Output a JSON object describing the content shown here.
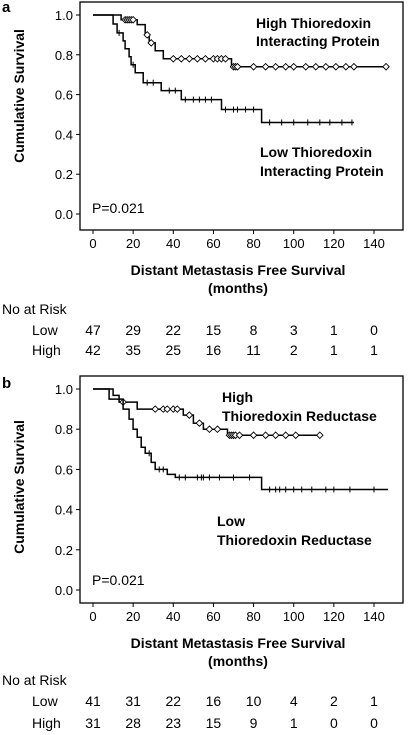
{
  "chart_data": [
    {
      "type": "line",
      "panel_label": "a",
      "ylabel": "Cumulative Survival",
      "xlabel_line1": "Distant Metastasis Free Survival",
      "xlabel_line2": "(months)",
      "xlim": [
        0,
        150
      ],
      "ylim": [
        0,
        1.0
      ],
      "x_ticks": [
        0,
        20,
        40,
        60,
        80,
        100,
        120,
        140
      ],
      "y_ticks": [
        0.0,
        0.2,
        0.4,
        0.6,
        0.8,
        1.0
      ],
      "y_tick_labels": [
        "0.0",
        "0.2",
        "0.4",
        "0.6",
        "0.8",
        "1.0"
      ],
      "pvalue": "P=0.021",
      "series": [
        {
          "name_line1": "High Thioredoxin",
          "name_line2": "Interacting Protein",
          "censor_marker": "diamond",
          "steps": [
            [
              0,
              1.0
            ],
            [
              14,
              1.0
            ],
            [
              14,
              0.976
            ],
            [
              22,
              0.976
            ],
            [
              22,
              0.952
            ],
            [
              26,
              0.952
            ],
            [
              26,
              0.9
            ],
            [
              28,
              0.9
            ],
            [
              28,
              0.86
            ],
            [
              31,
              0.86
            ],
            [
              31,
              0.82
            ],
            [
              35,
              0.82
            ],
            [
              35,
              0.78
            ],
            [
              69,
              0.78
            ],
            [
              69,
              0.74
            ],
            [
              147,
              0.74
            ]
          ],
          "censored": [
            [
              16,
              0.976
            ],
            [
              17,
              0.976
            ],
            [
              18,
              0.976
            ],
            [
              19,
              0.976
            ],
            [
              20,
              0.976
            ],
            [
              27,
              0.9
            ],
            [
              29,
              0.86
            ],
            [
              40,
              0.78
            ],
            [
              44,
              0.78
            ],
            [
              48,
              0.78
            ],
            [
              52,
              0.78
            ],
            [
              56,
              0.78
            ],
            [
              60,
              0.78
            ],
            [
              62,
              0.78
            ],
            [
              64,
              0.78
            ],
            [
              66,
              0.78
            ],
            [
              70,
              0.74
            ],
            [
              71,
              0.74
            ],
            [
              72,
              0.74
            ],
            [
              80,
              0.74
            ],
            [
              86,
              0.74
            ],
            [
              91,
              0.74
            ],
            [
              96,
              0.74
            ],
            [
              100,
              0.74
            ],
            [
              106,
              0.74
            ],
            [
              111,
              0.74
            ],
            [
              116,
              0.74
            ],
            [
              121,
              0.74
            ],
            [
              126,
              0.74
            ],
            [
              130,
              0.74
            ],
            [
              146,
              0.74
            ]
          ]
        },
        {
          "name_line1": "Low Thioredoxin",
          "name_line2": "Interacting Protein",
          "censor_marker": "plus",
          "steps": [
            [
              0,
              1.0
            ],
            [
              10,
              1.0
            ],
            [
              10,
              0.955
            ],
            [
              12,
              0.955
            ],
            [
              12,
              0.91
            ],
            [
              15,
              0.91
            ],
            [
              15,
              0.87
            ],
            [
              16,
              0.87
            ],
            [
              16,
              0.83
            ],
            [
              18,
              0.83
            ],
            [
              18,
              0.79
            ],
            [
              19,
              0.79
            ],
            [
              19,
              0.75
            ],
            [
              21,
              0.75
            ],
            [
              21,
              0.71
            ],
            [
              25,
              0.71
            ],
            [
              25,
              0.66
            ],
            [
              34,
              0.66
            ],
            [
              34,
              0.62
            ],
            [
              44,
              0.62
            ],
            [
              44,
              0.575
            ],
            [
              64,
              0.575
            ],
            [
              64,
              0.525
            ],
            [
              84,
              0.525
            ],
            [
              84,
              0.46
            ],
            [
              130,
              0.46
            ]
          ],
          "censored": [
            [
              13,
              0.91
            ],
            [
              20,
              0.75
            ],
            [
              27,
              0.66
            ],
            [
              30,
              0.66
            ],
            [
              38,
              0.62
            ],
            [
              41,
              0.62
            ],
            [
              46,
              0.575
            ],
            [
              50,
              0.575
            ],
            [
              53,
              0.575
            ],
            [
              56,
              0.575
            ],
            [
              59,
              0.575
            ],
            [
              66,
              0.525
            ],
            [
              70,
              0.525
            ],
            [
              72,
              0.525
            ],
            [
              76,
              0.525
            ],
            [
              80,
              0.525
            ],
            [
              88,
              0.46
            ],
            [
              94,
              0.46
            ],
            [
              100,
              0.46
            ],
            [
              107,
              0.46
            ],
            [
              113,
              0.46
            ],
            [
              118,
              0.46
            ],
            [
              124,
              0.46
            ],
            [
              129,
              0.46
            ]
          ]
        }
      ],
      "risk_table": {
        "header": "No at Risk",
        "times": [
          0,
          20,
          40,
          60,
          80,
          100,
          120,
          140
        ],
        "rows": [
          {
            "label": "Low",
            "values": [
              "47",
              "29",
              "22",
              "15",
              "8",
              "3",
              "1",
              "0"
            ]
          },
          {
            "label": "High",
            "values": [
              "42",
              "35",
              "25",
              "16",
              "11",
              "2",
              "1",
              "1"
            ]
          }
        ]
      }
    },
    {
      "type": "line",
      "panel_label": "b",
      "ylabel": "Cumulative Survival",
      "xlabel_line1": "Distant Metastasis Free Survival",
      "xlabel_line2": "(months)",
      "xlim": [
        0,
        150
      ],
      "ylim": [
        0,
        1.0
      ],
      "x_ticks": [
        0,
        20,
        40,
        60,
        80,
        100,
        120,
        140
      ],
      "y_ticks": [
        0.0,
        0.2,
        0.4,
        0.6,
        0.8,
        1.0
      ],
      "y_tick_labels": [
        "0.0",
        "0.2",
        "0.4",
        "0.6",
        "0.8",
        "1.0"
      ],
      "pvalue": "P=0.021",
      "series": [
        {
          "name_line1": "High",
          "name_line2": "Thioredoxin Reductase",
          "censor_marker": "diamond",
          "steps": [
            [
              0,
              1.0
            ],
            [
              10,
              1.0
            ],
            [
              10,
              0.968
            ],
            [
              13,
              0.968
            ],
            [
              13,
              0.935
            ],
            [
              22,
              0.935
            ],
            [
              22,
              0.9
            ],
            [
              45,
              0.9
            ],
            [
              45,
              0.87
            ],
            [
              50,
              0.87
            ],
            [
              50,
              0.83
            ],
            [
              55,
              0.83
            ],
            [
              55,
              0.8
            ],
            [
              67,
              0.8
            ],
            [
              67,
              0.77
            ],
            [
              114,
              0.77
            ]
          ],
          "censored": [
            [
              15,
              0.935
            ],
            [
              31,
              0.9
            ],
            [
              35,
              0.9
            ],
            [
              37,
              0.9
            ],
            [
              40,
              0.9
            ],
            [
              42,
              0.9
            ],
            [
              48,
              0.87
            ],
            [
              53,
              0.83
            ],
            [
              58,
              0.8
            ],
            [
              62,
              0.8
            ],
            [
              68,
              0.77
            ],
            [
              69,
              0.77
            ],
            [
              70,
              0.77
            ],
            [
              71,
              0.77
            ],
            [
              73,
              0.77
            ],
            [
              80,
              0.77
            ],
            [
              86,
              0.77
            ],
            [
              91,
              0.77
            ],
            [
              96,
              0.77
            ],
            [
              101,
              0.77
            ],
            [
              113,
              0.77
            ]
          ]
        },
        {
          "name_line1": "Low",
          "name_line2": "Thioredoxin Reductase",
          "censor_marker": "plus",
          "steps": [
            [
              0,
              1.0
            ],
            [
              8,
              1.0
            ],
            [
              8,
              0.95
            ],
            [
              15,
              0.95
            ],
            [
              15,
              0.9
            ],
            [
              18,
              0.9
            ],
            [
              18,
              0.85
            ],
            [
              20,
              0.85
            ],
            [
              20,
              0.8
            ],
            [
              22,
              0.8
            ],
            [
              22,
              0.76
            ],
            [
              24,
              0.76
            ],
            [
              24,
              0.71
            ],
            [
              26,
              0.71
            ],
            [
              26,
              0.68
            ],
            [
              29,
              0.68
            ],
            [
              29,
              0.635
            ],
            [
              31,
              0.635
            ],
            [
              31,
              0.6
            ],
            [
              37,
              0.6
            ],
            [
              37,
              0.575
            ],
            [
              41,
              0.575
            ],
            [
              41,
              0.56
            ],
            [
              84,
              0.56
            ],
            [
              84,
              0.5
            ],
            [
              147,
              0.5
            ]
          ],
          "censored": [
            [
              28,
              0.68
            ],
            [
              33,
              0.6
            ],
            [
              35,
              0.6
            ],
            [
              43,
              0.56
            ],
            [
              46,
              0.56
            ],
            [
              52,
              0.56
            ],
            [
              54,
              0.56
            ],
            [
              55,
              0.56
            ],
            [
              58,
              0.56
            ],
            [
              63,
              0.56
            ],
            [
              70,
              0.56
            ],
            [
              78,
              0.56
            ],
            [
              88,
              0.5
            ],
            [
              91,
              0.5
            ],
            [
              93,
              0.5
            ],
            [
              96,
              0.5
            ],
            [
              100,
              0.5
            ],
            [
              104,
              0.5
            ],
            [
              109,
              0.5
            ],
            [
              116,
              0.5
            ],
            [
              120,
              0.5
            ],
            [
              128,
              0.5
            ],
            [
              140,
              0.5
            ]
          ]
        }
      ],
      "risk_table": {
        "header": "No at Risk",
        "times": [
          0,
          20,
          40,
          60,
          80,
          100,
          120,
          140
        ],
        "rows": [
          {
            "label": "Low",
            "values": [
              "41",
              "31",
              "22",
              "16",
              "10",
              "4",
              "2",
              "1"
            ]
          },
          {
            "label": "High",
            "values": [
              "31",
              "28",
              "23",
              "15",
              "9",
              "1",
              "0",
              "0"
            ]
          }
        ]
      }
    }
  ]
}
